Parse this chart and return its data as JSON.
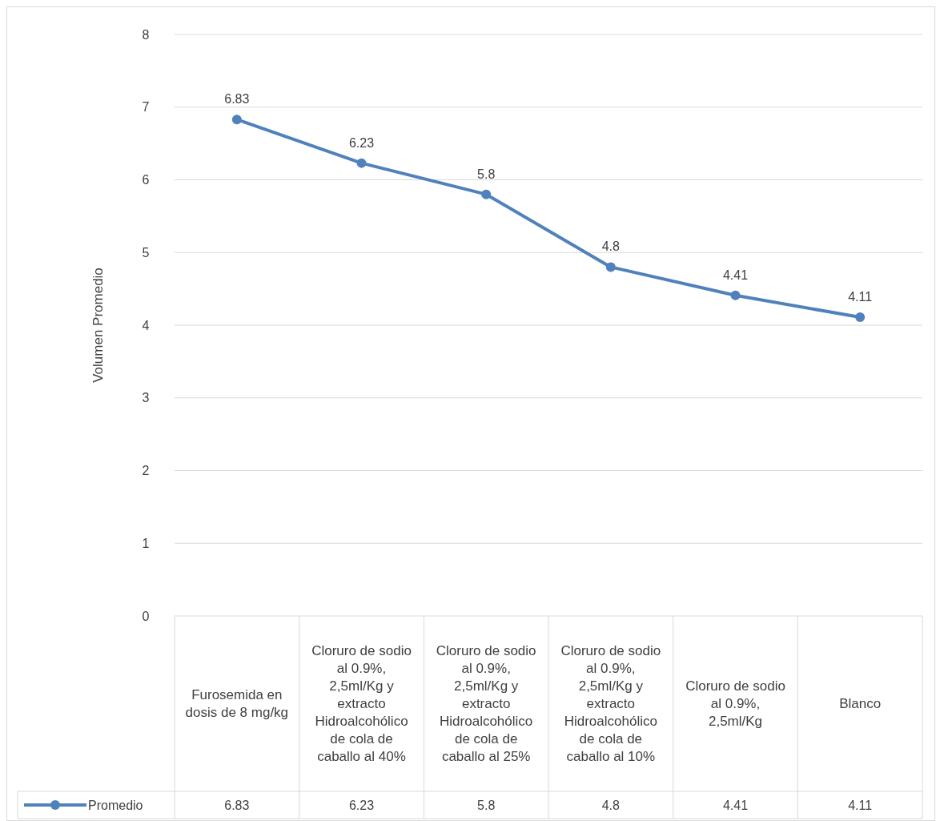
{
  "chart_data": {
    "type": "line",
    "ylabel": "Volumen Promedio",
    "categories": [
      "Furosemida en dosis de 8 mg/kg",
      "Cloruro de sodio al 0.9%, 2,5ml/Kg y extracto Hidroalcohólico de cola de caballo al 40%",
      "Cloruro de sodio al 0.9%, 2,5ml/Kg y extracto Hidroalcohólico de cola de caballo al 25%",
      "Cloruro de sodio al 0.9%, 2,5ml/Kg y extracto Hidroalcohólico de cola de caballo al 10%",
      "Cloruro de sodio al 0.9%, 2,5ml/Kg",
      "Blanco"
    ],
    "series": [
      {
        "name": "Promedio",
        "color": "#4f81bd",
        "values": [
          6.83,
          6.23,
          5.8,
          4.8,
          4.41,
          4.11
        ]
      }
    ],
    "annotations": [
      "6.83",
      "6.23",
      "5.8",
      "4.8",
      "4.41",
      "4.11"
    ],
    "ylim": [
      0,
      8
    ],
    "yticks": [
      0,
      1,
      2,
      3,
      4,
      5,
      6,
      7,
      8
    ],
    "grid": "y",
    "marker": "circle",
    "line_style": "solid",
    "data_labels": true,
    "legend": "bottom"
  }
}
